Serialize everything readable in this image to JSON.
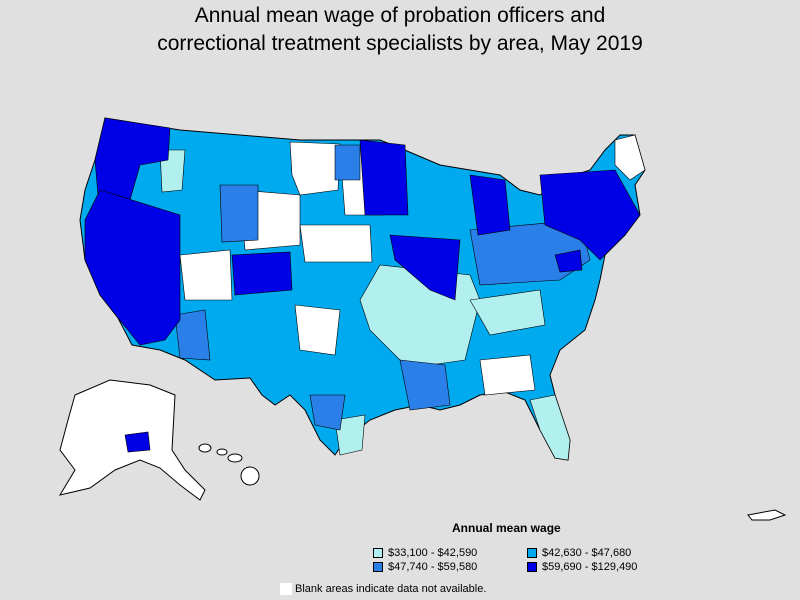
{
  "title_line1": "Annual mean wage of probation officers and",
  "title_line2": "correctional treatment specialists by area, May 2019",
  "legend": {
    "title": "Annual mean wage",
    "items": [
      {
        "label": "$33,100 - $42,590",
        "color": "#b2f0f0"
      },
      {
        "label": "$42,630 - $47,680",
        "color": "#00aaee"
      },
      {
        "label": "$47,740 - $59,580",
        "color": "#2a7fe8"
      },
      {
        "label": "$59,690 - $129,490",
        "color": "#0000e6"
      }
    ]
  },
  "note": "Blank areas indicate data not available.",
  "colors": {
    "background": "#e0e0e0",
    "blank": "#ffffff",
    "border": "#000000"
  }
}
